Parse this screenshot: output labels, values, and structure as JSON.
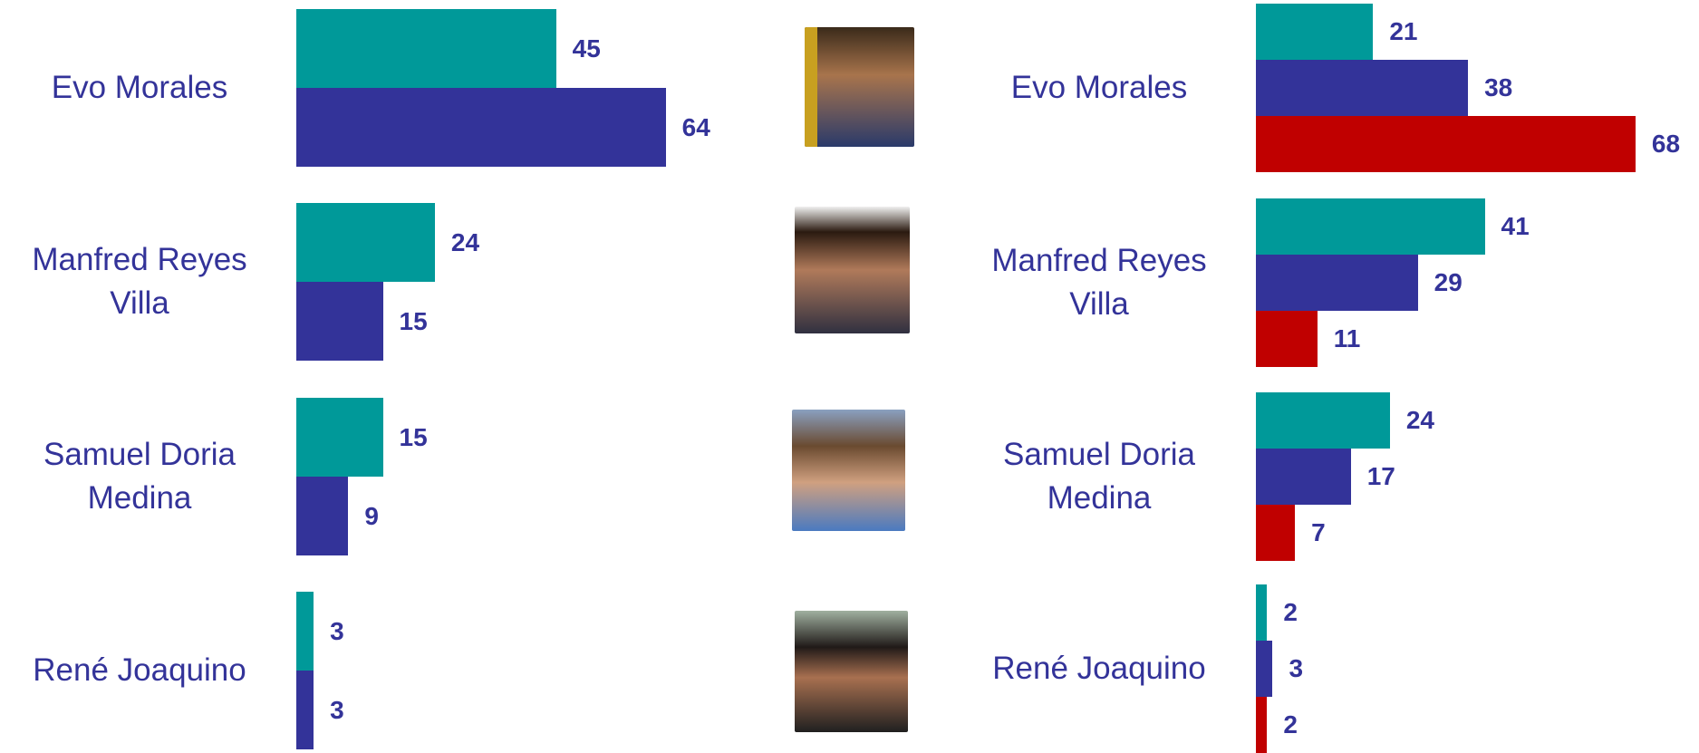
{
  "chart_data": [
    {
      "type": "bar",
      "orientation": "horizontal",
      "categories": [
        "Evo Morales",
        "Manfred Reyes Villa",
        "Samuel Doria Medina",
        "René Joaquino"
      ],
      "series": [
        {
          "color": "#009999",
          "values": [
            45,
            24,
            15,
            3
          ]
        },
        {
          "color": "#333399",
          "values": [
            64,
            15,
            9,
            3
          ]
        }
      ]
    },
    {
      "type": "bar",
      "orientation": "horizontal",
      "categories": [
        "Evo Morales",
        "Manfred Reyes Villa",
        "Samuel Doria Medina",
        "René Joaquino"
      ],
      "series": [
        {
          "color": "#009999",
          "values": [
            21,
            41,
            24,
            2
          ]
        },
        {
          "color": "#333399",
          "values": [
            38,
            29,
            17,
            3
          ]
        },
        {
          "color": "#c00000",
          "values": [
            68,
            11,
            7,
            2
          ]
        }
      ]
    }
  ]
}
